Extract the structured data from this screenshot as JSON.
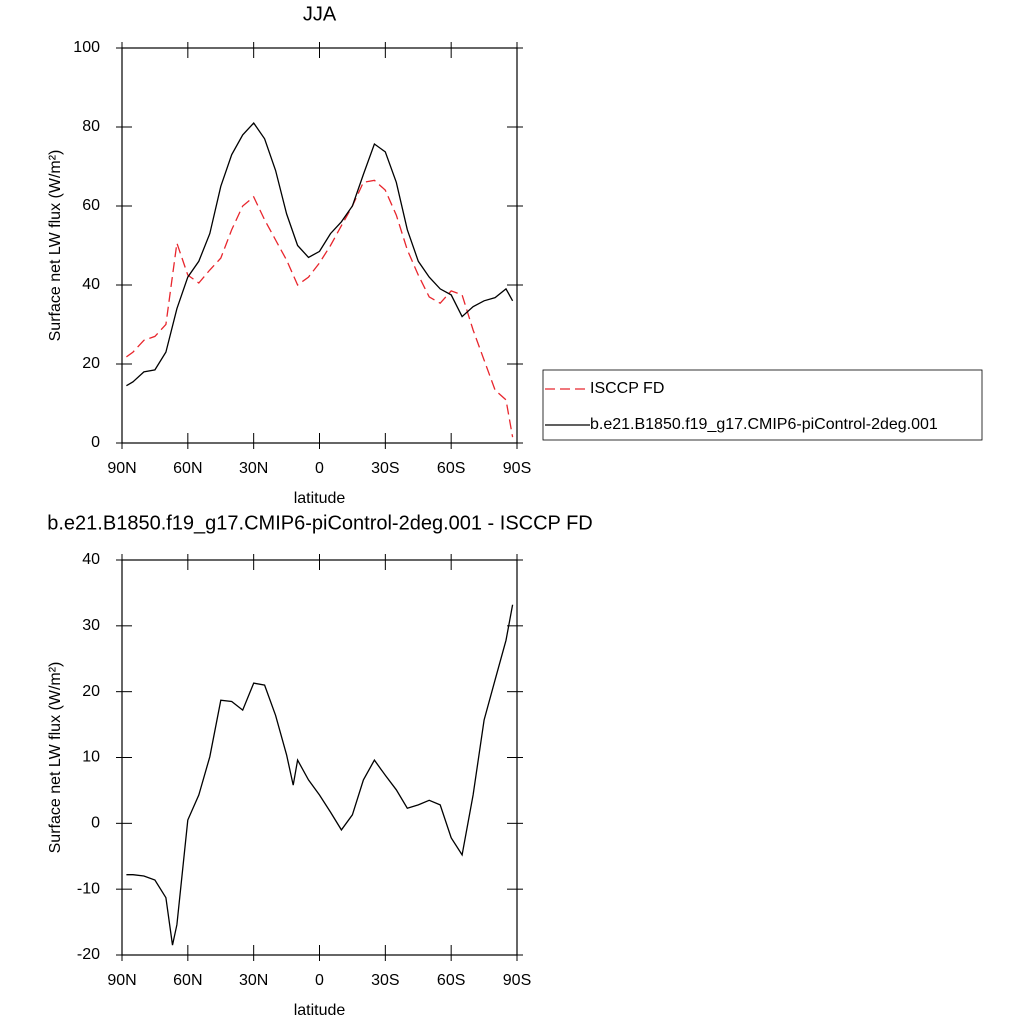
{
  "chart_data": [
    {
      "type": "line",
      "title": "JJA",
      "xlabel": "latitude",
      "ylabel": "Surface net LW flux (W/m²)",
      "x": [
        88,
        85,
        80,
        75,
        70,
        65,
        60,
        55,
        50,
        45,
        40,
        35,
        30,
        25,
        20,
        15,
        10,
        5,
        0,
        -5,
        -10,
        -15,
        -20,
        -25,
        -30,
        -35,
        -40,
        -45,
        -50,
        -55,
        -60,
        -65,
        -70,
        -75,
        -80,
        -85,
        -88
      ],
      "series": [
        {
          "name": "ISCCP FD",
          "color": "#e8262d",
          "line_style": "dashed",
          "values": [
            21.8,
            23,
            26,
            27,
            30,
            50.6,
            42.5,
            40.5,
            43.8,
            46.8,
            54,
            60,
            62.3,
            56.5,
            51.4,
            46.3,
            40,
            42,
            45.6,
            50,
            55,
            60,
            66,
            66.5,
            64,
            57.7,
            48.9,
            42.5,
            37,
            35.4,
            38.5,
            37.5,
            28.6,
            21,
            13.4,
            10.9,
            1.5
          ]
        },
        {
          "name": "b.e21.B1850.f19_g17.CMIP6-piControl-2deg.001",
          "color": "#000000",
          "line_style": "solid",
          "values": [
            14.5,
            15.5,
            18,
            18.5,
            23,
            34,
            42,
            46,
            53,
            65,
            73,
            78,
            81,
            77,
            69,
            58,
            50,
            47,
            48.5,
            53,
            56,
            60,
            68,
            75.7,
            73.7,
            66,
            54,
            46,
            42,
            39,
            37.5,
            32,
            34.5,
            36,
            36.8,
            39,
            36
          ]
        }
      ],
      "xlim": [
        90,
        -90
      ],
      "xticks": [
        {
          "value": 90,
          "label": "90N"
        },
        {
          "value": 60,
          "label": "60N"
        },
        {
          "value": 30,
          "label": "30N"
        },
        0,
        {
          "value": -30,
          "label": "30S"
        },
        {
          "value": -60,
          "label": "60S"
        },
        {
          "value": -90,
          "label": "90S"
        }
      ],
      "ylim": [
        0,
        100
      ],
      "yticks": [
        0,
        20,
        40,
        60,
        80,
        100
      ],
      "legend": "right"
    },
    {
      "type": "line",
      "title": "b.e21.B1850.f19_g17.CMIP6-piControl-2deg.001 - ISCCP FD",
      "xlabel": "latitude",
      "ylabel": "Surface net LW flux (W/m²)",
      "x": [
        88,
        85,
        80,
        75,
        70,
        67,
        65,
        60,
        55,
        50,
        45,
        40,
        35,
        30,
        25,
        20,
        15,
        12,
        10,
        5,
        0,
        -5,
        -10,
        -15,
        -20,
        -25,
        -30,
        -35,
        -40,
        -45,
        -50,
        -55,
        -60,
        -65,
        -70,
        -75,
        -80,
        -85,
        -88
      ],
      "values": [
        -7.8,
        -7.8,
        -8,
        -8.6,
        -11.3,
        -18.5,
        -15.4,
        0.5,
        4.3,
        10.1,
        18.7,
        18.5,
        17.2,
        21.3,
        21,
        16.4,
        10.4,
        5.8,
        9.6,
        6.6,
        4.3,
        1.7,
        -1,
        1.3,
        6.6,
        9.6,
        7.3,
        5.1,
        2.3,
        2.8,
        3.5,
        2.8,
        -2.2,
        -4.8,
        4.3,
        15.7,
        21.8,
        27.8,
        33.2
      ],
      "color": "#000000",
      "xlim": [
        90,
        -90
      ],
      "xticks": [
        {
          "value": 90,
          "label": "90N"
        },
        {
          "value": 60,
          "label": "60N"
        },
        {
          "value": 30,
          "label": "30N"
        },
        0,
        {
          "value": -30,
          "label": "30S"
        },
        {
          "value": -60,
          "label": "60S"
        },
        {
          "value": -90,
          "label": "90S"
        }
      ],
      "ylim": [
        -20,
        40
      ],
      "yticks": [
        -20,
        -10,
        0,
        10,
        20,
        30,
        40
      ]
    }
  ]
}
